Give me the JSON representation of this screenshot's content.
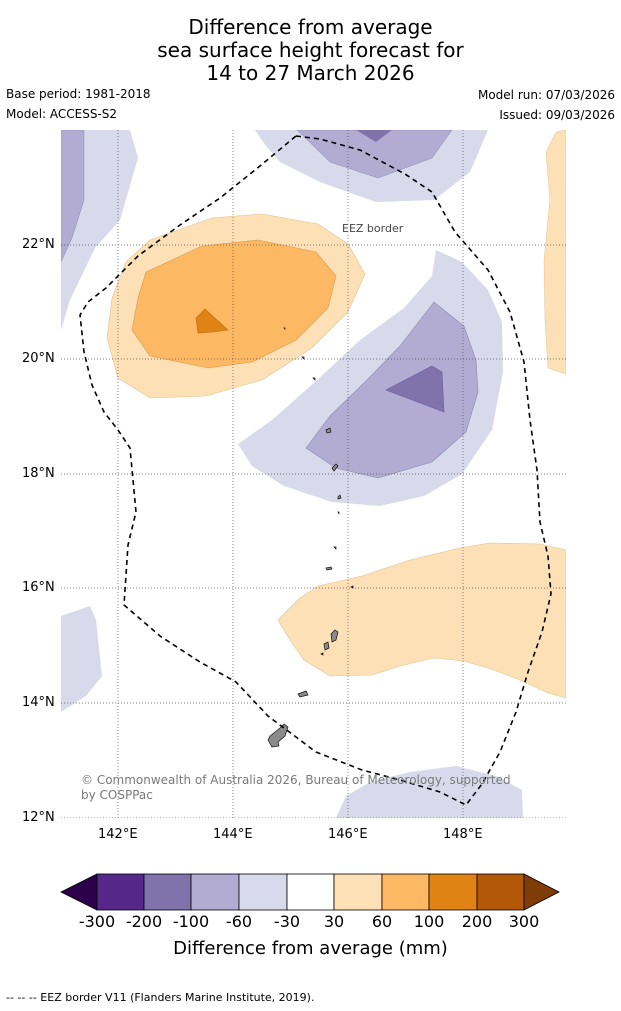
{
  "title": {
    "line1": "Difference from average",
    "line2": "sea surface height forecast for",
    "line3": "14 to 27 March 2026"
  },
  "meta": {
    "base_period": "Base period: 1981-2018",
    "model": "Model: ACCESS-S2",
    "model_run": "Model run: 07/03/2026",
    "issued": "Issued: 09/03/2026"
  },
  "map": {
    "lat_labels": [
      "22°N",
      "20°N",
      "18°N",
      "16°N",
      "14°N",
      "12°N"
    ],
    "lon_labels": [
      "142°E",
      "144°E",
      "146°E",
      "148°E"
    ],
    "credit": "© Commonwealth of Australia 2026, Bureau of Meteorology, supported by COSPPac",
    "eez_label": "EEZ border"
  },
  "colorbar": {
    "ticks": [
      "-300",
      "-200",
      "-100",
      "-60",
      "-30",
      "30",
      "60",
      "100",
      "200",
      "300"
    ],
    "label": "Difference from average (mm)",
    "colors": {
      "below_min": "#2d004b",
      "bin_-300_-200": "#542788",
      "bin_-200_-100": "#8073ac",
      "bin_-100_-60": "#b2abd2",
      "bin_-60_-30": "#d8daeb",
      "bin_-30_30": "#ffffff",
      "bin_30_60": "#fee0b6",
      "bin_60_100": "#fdb863",
      "bin_100_200": "#e08214",
      "bin_200_300": "#b35806",
      "above_max": "#7f3b08"
    }
  },
  "footer": {
    "legend_line": "-- -- -- EEZ border V11 (Flanders Marine Institute, 2019)."
  }
}
